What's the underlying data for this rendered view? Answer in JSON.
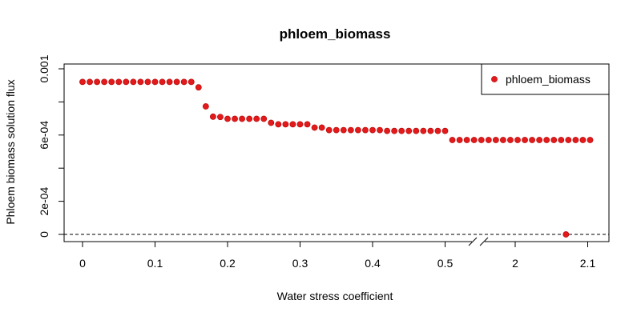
{
  "chart_data": {
    "type": "scatter",
    "title": "phloem_biomass",
    "xlabel": "Water stress coefficient",
    "ylabel": "Phloem biomass solution flux",
    "legend": {
      "position": "top-right",
      "entries": [
        "phloem_biomass"
      ]
    },
    "grid": false,
    "point_color": "#e31a1c",
    "reference_line": {
      "y": 0,
      "style": "dashed",
      "color": "#000000"
    },
    "axis_break": {
      "between": [
        0.5,
        2
      ],
      "style": "double-slash"
    },
    "x_ticks": [
      "0",
      "0.1",
      "0.2",
      "0.3",
      "0.4",
      "0.5",
      "2",
      "2.1"
    ],
    "y_ticks": [
      "0",
      "2e-04",
      "6e-04",
      "0.001"
    ],
    "ylim": [
      0,
      0.001
    ],
    "series": [
      {
        "name": "phloem_biomass",
        "x": [
          0,
          0.01,
          0.02,
          0.03,
          0.04,
          0.05,
          0.06,
          0.07,
          0.08,
          0.09,
          0.1,
          0.11,
          0.12,
          0.13,
          0.14,
          0.15,
          0.16,
          0.17,
          0.18,
          0.19,
          0.2,
          0.21,
          0.22,
          0.23,
          0.24,
          0.25,
          0.26,
          0.27,
          0.28,
          0.29,
          0.3,
          0.31,
          0.32,
          0.33,
          0.34,
          0.35,
          0.36,
          0.37,
          0.38,
          0.39,
          0.4,
          0.41,
          0.42,
          0.43,
          0.44,
          0.45,
          0.46,
          0.47,
          0.48,
          0.49,
          0.5,
          0.51,
          0.52,
          0.53,
          0.54,
          0.55,
          0.56,
          0.57,
          0.58,
          0.59,
          0.6,
          0.61,
          0.62,
          0.63,
          0.64,
          0.65,
          0.66,
          0.67,
          0.68,
          0.69,
          0.7,
          2.07
        ],
        "y": [
          0.000921,
          0.000921,
          0.000921,
          0.000921,
          0.000921,
          0.000921,
          0.000921,
          0.000921,
          0.000921,
          0.000921,
          0.000921,
          0.000921,
          0.000921,
          0.000921,
          0.000921,
          0.000921,
          0.000888,
          0.000773,
          0.000711,
          0.000709,
          0.000698,
          0.000698,
          0.000698,
          0.000698,
          0.000698,
          0.000698,
          0.000674,
          0.000665,
          0.000665,
          0.000665,
          0.000665,
          0.000665,
          0.000645,
          0.000645,
          0.00063,
          0.00063,
          0.00063,
          0.00063,
          0.00063,
          0.00063,
          0.00063,
          0.00063,
          0.000625,
          0.000625,
          0.000625,
          0.000625,
          0.000625,
          0.000625,
          0.000625,
          0.000625,
          0.000625,
          0.00057,
          0.00057,
          0.00057,
          0.00057,
          0.00057,
          0.00057,
          0.00057,
          0.00057,
          0.00057,
          0.00057,
          0.00057,
          0.00057,
          0.00057,
          0.00057,
          0.00057,
          0.00057,
          0.00057,
          0.00057,
          0.00057,
          0.00057,
          0.0
        ]
      }
    ]
  }
}
